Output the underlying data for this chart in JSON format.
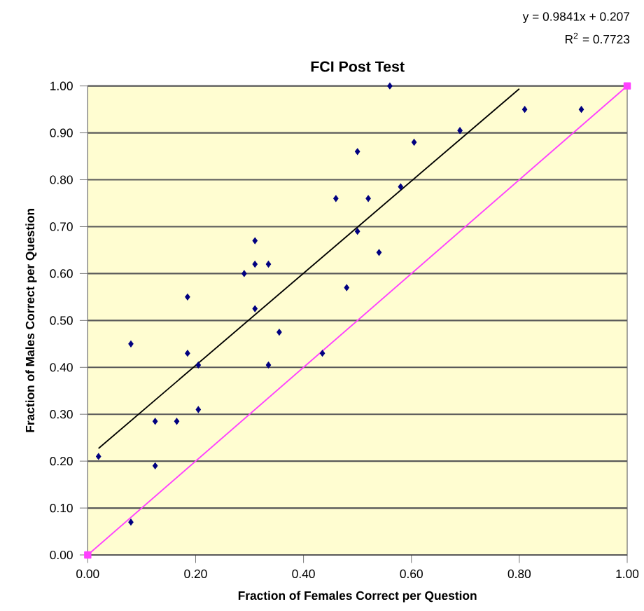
{
  "chart_data": {
    "type": "scatter",
    "title": "FCI Post Test",
    "xlabel": "Fraction of Females Correct per Question",
    "ylabel": "Fraction of  Males Correct per Question",
    "annotations": [
      "y = 0.9841x + 0.207",
      "R$^{2}$ = 0.7723"
    ],
    "xlim": [
      0,
      1
    ],
    "ylim": [
      0,
      1
    ],
    "xticks": [
      {
        "value": 0,
        "label": "0.00"
      },
      {
        "value": 0.2,
        "label": "0.20"
      },
      {
        "value": 0.4,
        "label": "0.40"
      },
      {
        "value": 0.6,
        "label": "0.60"
      },
      {
        "value": 0.8,
        "label": "0.80"
      },
      {
        "value": 1,
        "label": "1.00"
      }
    ],
    "yticks": [
      {
        "value": 0,
        "label": "0.00"
      },
      {
        "value": 0.1,
        "label": "0.10"
      },
      {
        "value": 0.2,
        "label": "0.20"
      },
      {
        "value": 0.3,
        "label": "0.30"
      },
      {
        "value": 0.4,
        "label": "0.40"
      },
      {
        "value": 0.5,
        "label": "0.50"
      },
      {
        "value": 0.6,
        "label": "0.60"
      },
      {
        "value": 0.7,
        "label": "0.70"
      },
      {
        "value": 0.8,
        "label": "0.80"
      },
      {
        "value": 0.9,
        "label": "0.90"
      },
      {
        "value": 1,
        "label": "1.00"
      }
    ],
    "grid": "y",
    "marker": "diamond",
    "series": [
      {
        "color": "#000080",
        "x": [
          0.02,
          0.08,
          0.08,
          0.125,
          0.125,
          0.165,
          0.185,
          0.185,
          0.205,
          0.205,
          0.29,
          0.31,
          0.31,
          0.31,
          0.335,
          0.335,
          0.355,
          0.435,
          0.46,
          0.48,
          0.5,
          0.5,
          0.52,
          0.54,
          0.56,
          0.58,
          0.605,
          0.69,
          0.81,
          0.915
        ],
        "values": [
          0.21,
          0.45,
          0.07,
          0.285,
          0.19,
          0.285,
          0.55,
          0.43,
          0.405,
          0.31,
          0.6,
          0.67,
          0.62,
          0.525,
          0.62,
          0.405,
          0.475,
          0.43,
          0.76,
          0.57,
          0.86,
          0.69,
          0.76,
          0.645,
          1.0,
          0.785,
          0.88,
          0.905,
          0.95,
          0.95
        ]
      },
      {
        "type": "line",
        "color": "#000000",
        "marker": "none",
        "x": [
          0.02,
          0.8
        ],
        "values": [
          0.227,
          0.994
        ]
      },
      {
        "type": "line",
        "color": "#ff40ff",
        "marker": "square",
        "x": [
          0,
          1
        ],
        "values": [
          0,
          1
        ]
      }
    ]
  }
}
